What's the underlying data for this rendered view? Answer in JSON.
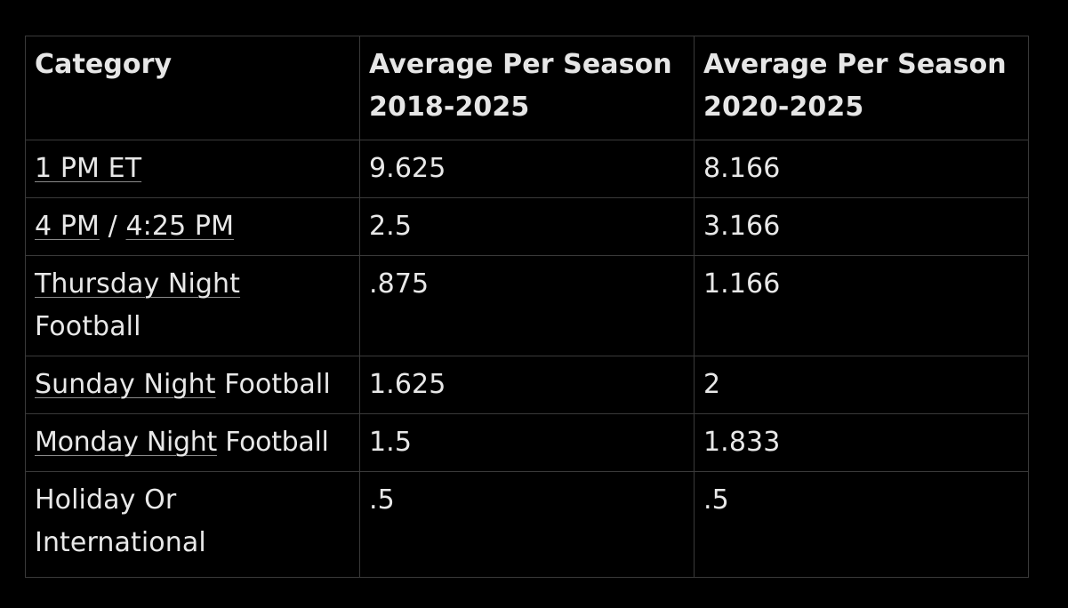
{
  "headers": {
    "category": "Category",
    "avg_2018_line1": "Average Per Season",
    "avg_2018_line2": "2018-2025",
    "avg_2020_line1": "Average Per Season",
    "avg_2020_line2": "2020-2025"
  },
  "rows": [
    {
      "link1": "1 PM ET",
      "sep": "",
      "link2": "",
      "rest": "",
      "v2018": "9.625",
      "v2020": "8.166"
    },
    {
      "link1": "4 PM",
      "sep": " / ",
      "link2": "4:25 PM",
      "rest": "",
      "v2018": "2.5",
      "v2020": "3.166"
    },
    {
      "link1": "Thursday Night",
      "sep": "",
      "link2": "",
      "rest": " Football",
      "v2018": ".875",
      "v2020": "1.166"
    },
    {
      "link1": "Sunday Night",
      "sep": "",
      "link2": "",
      "rest": " Football",
      "v2018": "1.625",
      "v2020": "2"
    },
    {
      "link1": "Monday Night",
      "sep": "",
      "link2": "",
      "rest": " Football",
      "v2018": "1.5",
      "v2020": "1.833"
    },
    {
      "link1": "",
      "sep": "",
      "link2": "",
      "rest": "Holiday Or International",
      "v2018": ".5",
      "v2020": ".5"
    }
  ]
}
